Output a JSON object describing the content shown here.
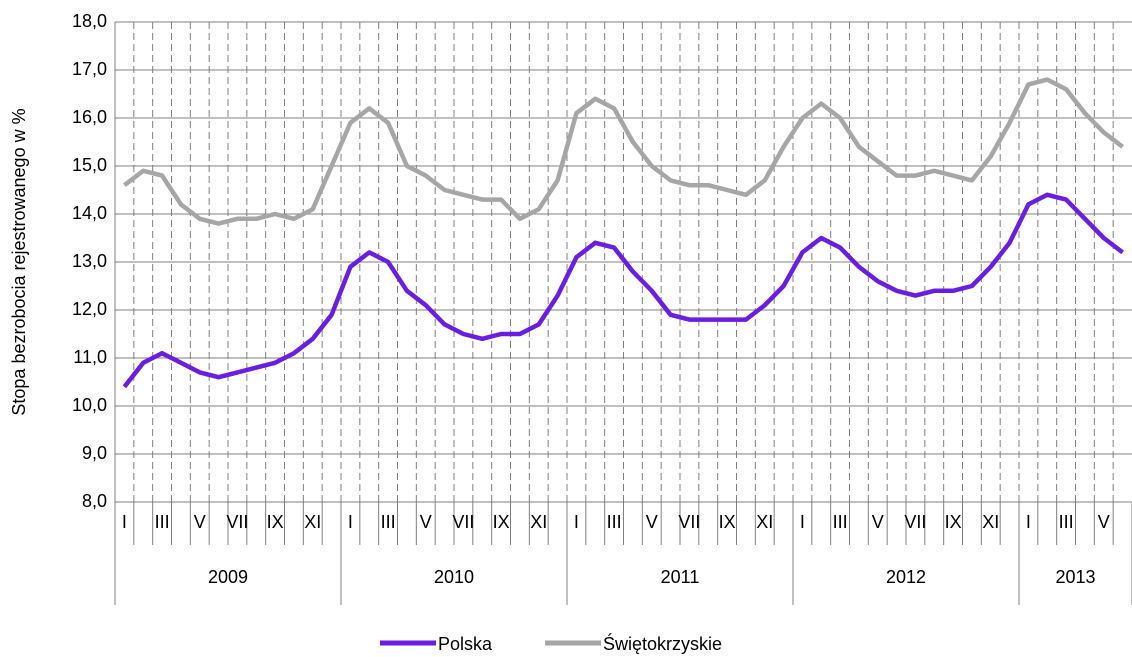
{
  "chart_data": {
    "type": "line",
    "y_label": "Stopa bezrobocia rejestrowanego w %",
    "categories": [
      "I",
      null,
      "III",
      null,
      "V",
      null,
      "VII",
      null,
      "IX",
      null,
      "XI",
      null,
      "I",
      null,
      "III",
      null,
      "V",
      null,
      "VII",
      null,
      "IX",
      null,
      "XI",
      null,
      "I",
      null,
      "III",
      null,
      "V",
      null,
      "VII",
      null,
      "IX",
      null,
      "XI",
      null,
      "I",
      null,
      "III",
      null,
      "V",
      null,
      "VII",
      null,
      "IX",
      null,
      "XI",
      null,
      "I",
      null,
      "III",
      null,
      "V",
      null
    ],
    "year_groups": [
      "2009",
      "2010",
      "2011",
      "2012",
      "2013"
    ],
    "series": [
      {
        "name": "Polska",
        "color": "#6a1fe0",
        "values": [
          10.4,
          10.9,
          11.1,
          10.9,
          10.7,
          10.6,
          10.7,
          10.8,
          10.9,
          11.1,
          11.4,
          11.9,
          12.9,
          13.2,
          13.0,
          12.4,
          12.1,
          11.7,
          11.5,
          11.4,
          11.5,
          11.5,
          11.7,
          12.3,
          13.1,
          13.4,
          13.3,
          12.8,
          12.4,
          11.9,
          11.8,
          11.8,
          11.8,
          11.8,
          12.1,
          12.5,
          13.2,
          13.5,
          13.3,
          12.9,
          12.6,
          12.4,
          12.3,
          12.4,
          12.4,
          12.5,
          12.9,
          13.4,
          14.2,
          14.4,
          14.3,
          13.9,
          13.5,
          13.2
        ]
      },
      {
        "name": "Świętokrzyskie",
        "color": "#a6a6a6",
        "values": [
          14.6,
          14.9,
          14.8,
          14.2,
          13.9,
          13.8,
          13.9,
          13.9,
          14.0,
          13.9,
          14.1,
          15.0,
          15.9,
          16.2,
          15.9,
          15.0,
          14.8,
          14.5,
          14.4,
          14.3,
          14.3,
          13.9,
          14.1,
          14.7,
          16.1,
          16.4,
          16.2,
          15.5,
          15.0,
          14.7,
          14.6,
          14.6,
          14.5,
          14.4,
          14.7,
          15.4,
          16.0,
          16.3,
          16.0,
          15.4,
          15.1,
          14.8,
          14.8,
          14.9,
          14.8,
          14.7,
          15.2,
          15.9,
          16.7,
          16.8,
          16.6,
          16.1,
          15.7,
          15.4
        ]
      }
    ],
    "ylim": [
      8,
      18
    ],
    "yticks": [
      {
        "value": 8,
        "label": "8,0"
      },
      {
        "value": 9,
        "label": "9,0"
      },
      {
        "value": 10,
        "label": "10,0"
      },
      {
        "value": 11,
        "label": "11,0"
      },
      {
        "value": 12,
        "label": "12,0"
      },
      {
        "value": 13,
        "label": "13,0"
      },
      {
        "value": 14,
        "label": "14,0"
      },
      {
        "value": 15,
        "label": "15,0"
      },
      {
        "value": 16,
        "label": "16,0"
      },
      {
        "value": 17,
        "label": "17,0"
      },
      {
        "value": 18,
        "label": "18,0"
      }
    ],
    "grid": true,
    "legend": "bottom"
  }
}
